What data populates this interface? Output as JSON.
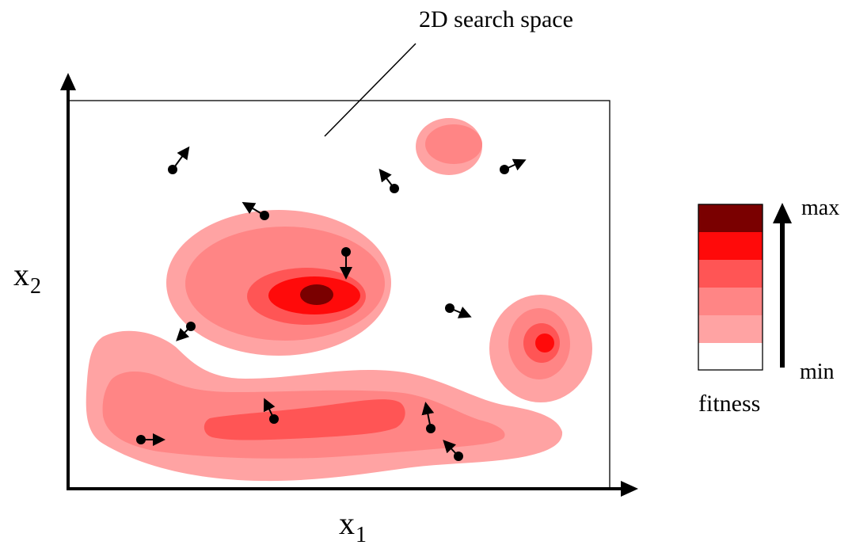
{
  "title": "2D search space",
  "axes": {
    "x_label": "x",
    "x_sub": "1",
    "y_label": "x",
    "y_sub": "2"
  },
  "legend": {
    "caption": "fitness",
    "max_label": "max",
    "min_label": "min",
    "levels": [
      "#7a0000",
      "#ff0a0a",
      "#ff5555",
      "#ff8585",
      "#ffa3a3",
      "#ffffff"
    ]
  },
  "colors": {
    "level1": "#ffa3a3",
    "level2": "#ff8585",
    "level3": "#ff5555",
    "level4": "#ff0a0a",
    "level5": "#7a0000",
    "particle": "#000000"
  },
  "particles": [
    {
      "id": "p1",
      "direction": "up-right"
    },
    {
      "id": "p2",
      "direction": "up-left"
    },
    {
      "id": "p3",
      "direction": "up-right"
    },
    {
      "id": "p4",
      "direction": "up-left"
    },
    {
      "id": "p5",
      "direction": "down"
    },
    {
      "id": "p6",
      "direction": "right"
    },
    {
      "id": "p7",
      "direction": "down-left"
    },
    {
      "id": "p8",
      "direction": "up-left"
    },
    {
      "id": "p9",
      "direction": "up"
    },
    {
      "id": "p10",
      "direction": "up-left"
    },
    {
      "id": "p11",
      "direction": "right"
    }
  ]
}
